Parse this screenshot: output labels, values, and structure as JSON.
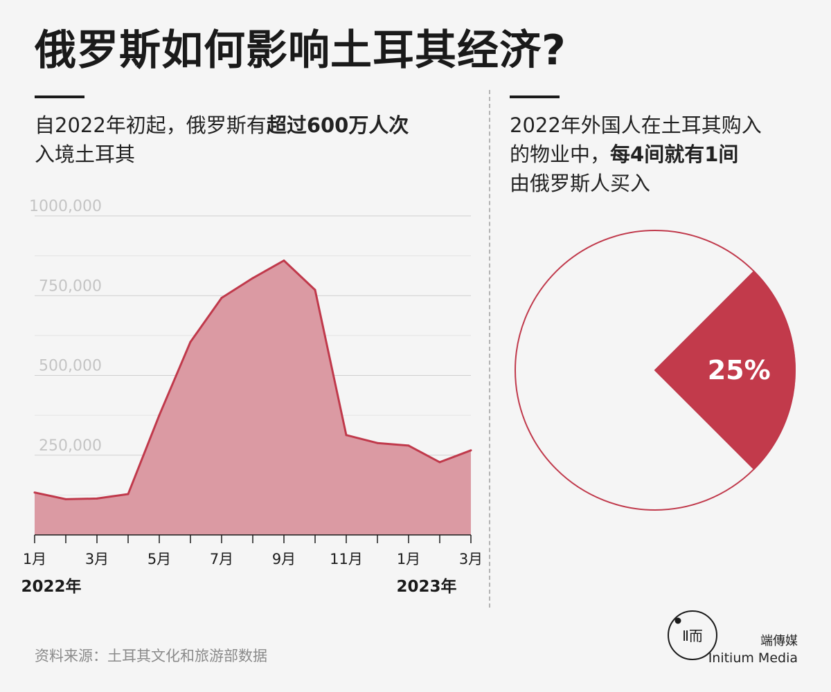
{
  "title": "俄罗斯如何影响土耳其经济?",
  "left_panel": {
    "subtitle_normal": "自2022年初起，俄罗斯有",
    "subtitle_bold": "超过600万人次",
    "subtitle_line2": "入境土耳其"
  },
  "right_panel": {
    "subtitle_line1": "2022年外国人在土耳其购入",
    "subtitle_line2_normal": "的物业中，",
    "subtitle_line2_bold": "每4间就有1间",
    "subtitle_line3": "由俄罗斯人买入"
  },
  "chart_data": [
    {
      "type": "area",
      "y_ticks": [
        "1000,000",
        "750,000",
        "500,000",
        "250,000"
      ],
      "y_tick_values": [
        1000000,
        750000,
        500000,
        250000
      ],
      "ylim": [
        0,
        1000000
      ],
      "grid": true,
      "x_tick_labels": [
        "1月",
        "3月",
        "5月",
        "7月",
        "9月",
        "11月",
        "1月",
        "3月"
      ],
      "x_tick_indices": [
        0,
        2,
        4,
        6,
        8,
        10,
        12,
        14
      ],
      "year_labels": [
        {
          "text": "2022年",
          "at": "1月"
        },
        {
          "text": "2023年",
          "at": "1月"
        }
      ],
      "x": [
        "2022-01",
        "2022-02",
        "2022-03",
        "2022-04",
        "2022-05",
        "2022-06",
        "2022-07",
        "2022-08",
        "2022-09",
        "2022-10",
        "2022-11",
        "2022-12",
        "2023-01",
        "2023-02",
        "2023-03"
      ],
      "series": [
        {
          "values": [
            133000,
            112000,
            114000,
            128000,
            375000,
            605000,
            743000,
            805000,
            860000,
            768000,
            313000,
            288000,
            280000,
            228000,
            265000
          ],
          "color": "#c0394b"
        }
      ]
    },
    {
      "type": "pie",
      "slices": [
        {
          "label": "25%",
          "value": 25,
          "color": "#c23a4b"
        },
        {
          "label": "",
          "value": 75,
          "color": "#f5f5f5"
        }
      ]
    }
  ],
  "source": "资料来源：土耳其文化和旅游部数据",
  "brand": {
    "cn": "端傳媒",
    "en": "Initium Media",
    "logo_glyphs": "Ⅱ而"
  },
  "colors": {
    "accent": "#c0394b",
    "area_fill": "#db9aa3",
    "text": "#1a1a1a",
    "grid_label": "#c4c4c4",
    "source": "#8a8a8a"
  }
}
